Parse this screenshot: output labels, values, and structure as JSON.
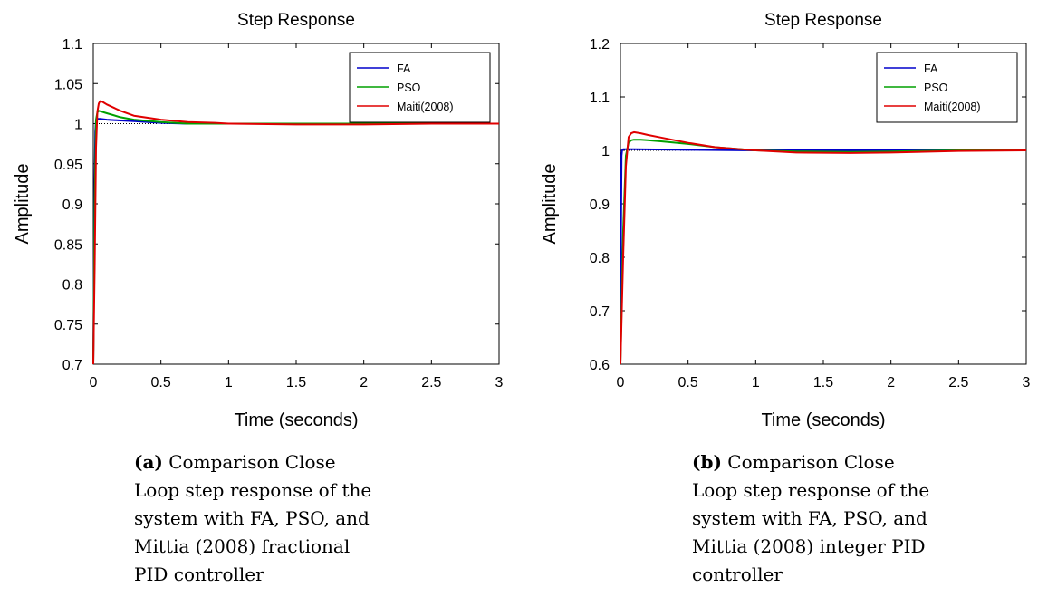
{
  "chart_data": [
    {
      "type": "line",
      "title": "Step Response",
      "xlabel": "Time (seconds)",
      "ylabel": "Amplitude",
      "xlim": [
        0,
        3
      ],
      "ylim": [
        0.7,
        1.1
      ],
      "xticks": [
        "0",
        "0.5",
        "1",
        "1.5",
        "2",
        "2.5",
        "3"
      ],
      "yticks": [
        "0.7",
        "0.75",
        "0.8",
        "0.85",
        "0.9",
        "0.95",
        "1",
        "1.05",
        "1.1"
      ],
      "legend_position": "top-right",
      "reference_line": 1.0,
      "series": [
        {
          "name": "FA",
          "color": "#0000cc",
          "x": [
            0,
            0.008,
            0.015,
            0.02,
            0.03,
            0.05,
            0.1,
            0.2,
            0.3,
            0.5,
            0.7,
            1.0,
            1.5,
            2.0,
            2.5,
            3.0
          ],
          "y": [
            0.7,
            0.9,
            0.99,
            1.003,
            1.006,
            1.006,
            1.005,
            1.004,
            1.003,
            1.001,
            1.0,
            1.0,
            1.0,
            1.0,
            1.0,
            1.0
          ]
        },
        {
          "name": "PSO",
          "color": "#00a000",
          "x": [
            0,
            0.01,
            0.02,
            0.03,
            0.04,
            0.06,
            0.1,
            0.2,
            0.3,
            0.5,
            0.7,
            1.0,
            1.5,
            2.0,
            2.5,
            3.0
          ],
          "y": [
            0.7,
            0.9,
            1.005,
            1.014,
            1.016,
            1.015,
            1.013,
            1.008,
            1.005,
            1.002,
            1.0,
            1.0,
            1.0,
            1.0,
            1.0,
            1.0
          ]
        },
        {
          "name": "Maiti(2008)",
          "color": "#e00000",
          "x": [
            0,
            0.01,
            0.02,
            0.03,
            0.04,
            0.05,
            0.07,
            0.1,
            0.2,
            0.3,
            0.5,
            0.7,
            0.9,
            1.0,
            1.5,
            2.0,
            2.5,
            3.0
          ],
          "y": [
            0.7,
            0.82,
            0.97,
            1.015,
            1.025,
            1.028,
            1.027,
            1.024,
            1.016,
            1.01,
            1.005,
            1.002,
            1.001,
            1.0,
            0.999,
            0.999,
            1.0,
            1.0
          ]
        }
      ]
    },
    {
      "type": "line",
      "title": "Step Response",
      "xlabel": "Time (seconds)",
      "ylabel": "Amplitude",
      "xlim": [
        0,
        3
      ],
      "ylim": [
        0.6,
        1.2
      ],
      "xticks": [
        "0",
        "0.5",
        "1",
        "1.5",
        "2",
        "2.5",
        "3"
      ],
      "yticks": [
        "0.6",
        "0.7",
        "0.8",
        "0.9",
        "1",
        "1.1",
        "1.2"
      ],
      "legend_position": "top-right",
      "reference_line": 1.0,
      "series": [
        {
          "name": "FA",
          "color": "#0000cc",
          "x": [
            0,
            0.004,
            0.008,
            0.012,
            0.02,
            0.1,
            0.5,
            1.0,
            1.5,
            2.0,
            2.5,
            3.0
          ],
          "y": [
            0.6,
            0.85,
            0.99,
            1.0,
            1.002,
            1.002,
            1.001,
            1.0,
            1.0,
            1.0,
            1.0,
            1.0
          ]
        },
        {
          "name": "PSO",
          "color": "#00a000",
          "x": [
            0,
            0.02,
            0.04,
            0.06,
            0.08,
            0.1,
            0.15,
            0.2,
            0.3,
            0.5,
            0.7,
            1.0,
            1.3,
            1.7,
            2.0,
            2.5,
            3.0
          ],
          "y": [
            0.6,
            0.85,
            0.99,
            1.015,
            1.019,
            1.02,
            1.02,
            1.019,
            1.017,
            1.012,
            1.006,
            1.0,
            0.998,
            0.997,
            0.998,
            1.0,
            1.0
          ]
        },
        {
          "name": "Maiti(2008)",
          "color": "#e00000",
          "x": [
            0,
            0.02,
            0.04,
            0.06,
            0.08,
            0.1,
            0.15,
            0.2,
            0.3,
            0.5,
            0.7,
            1.0,
            1.3,
            1.7,
            2.0,
            2.5,
            3.0
          ],
          "y": [
            0.6,
            0.8,
            0.97,
            1.025,
            1.032,
            1.034,
            1.032,
            1.029,
            1.024,
            1.014,
            1.006,
            1.0,
            0.996,
            0.995,
            0.996,
            0.999,
            1.0
          ]
        }
      ]
    }
  ],
  "captions": [
    {
      "label": "(a)",
      "text": " Comparison Close\nLoop step response of the\nsystem with FA, PSO, and\nMittia (2008) fractional\nPID controller"
    },
    {
      "label": "(b)",
      "text": " Comparison Close\nLoop step response of the\nsystem with FA, PSO, and\nMittia (2008) integer PID\ncontroller"
    }
  ]
}
